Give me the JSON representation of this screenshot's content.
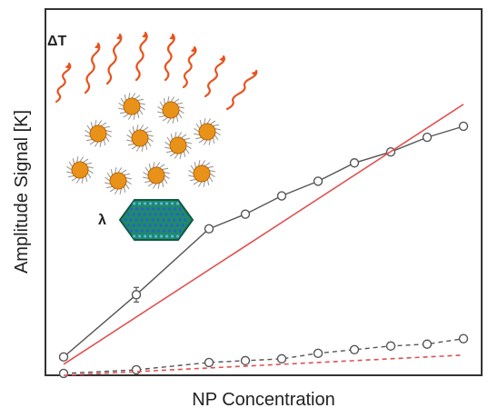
{
  "chart_data": {
    "type": "line",
    "title": "",
    "xlabel": "NP Concentration",
    "ylabel": "Amplitude Signal [K]",
    "xlim": [
      0.5,
      12.5
    ],
    "ylim": [
      0,
      100
    ],
    "grid": false,
    "x_ticks_shown": false,
    "y_ticks_shown": false,
    "series": [
      {
        "style": "solid-markers",
        "color": "#555555",
        "marker": "open-circle",
        "x": [
          1,
          3,
          5,
          6,
          7,
          8,
          9,
          10,
          11,
          12
        ],
        "y": [
          5,
          22,
          40,
          44,
          49,
          53,
          58,
          61,
          65,
          68
        ],
        "error_y": [
          0,
          2,
          0,
          0,
          0,
          0,
          0,
          0,
          0,
          0
        ]
      },
      {
        "style": "solid-line",
        "color": "#e05050",
        "x": [
          1,
          12
        ],
        "y": [
          3,
          74
        ]
      },
      {
        "style": "dashed-markers",
        "color": "#555555",
        "marker": "open-circle",
        "x": [
          1,
          3,
          5,
          6,
          7,
          8,
          9,
          10,
          11,
          12
        ],
        "y": [
          0.5,
          1.5,
          3.5,
          4,
          4.5,
          6,
          7,
          8,
          8.5,
          10
        ]
      },
      {
        "style": "dashed-line",
        "color": "#e05050",
        "x": [
          1,
          12
        ],
        "y": [
          0,
          5.5
        ]
      }
    ]
  },
  "inset": {
    "delta_label": "ΔT",
    "lambda_label": "λ",
    "particle_color": "#e8921a",
    "wave_color": "#e8531f",
    "hexagon_color": "#1f8a6a"
  }
}
